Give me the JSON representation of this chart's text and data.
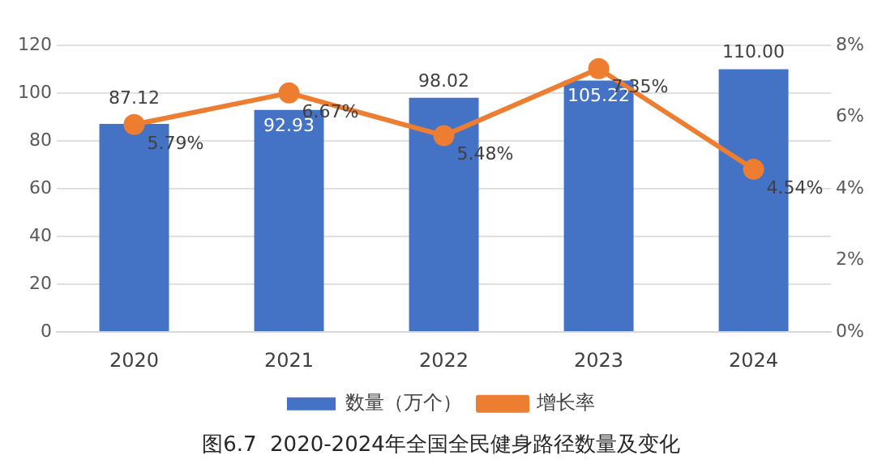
{
  "chart_data": {
    "type": "bar",
    "title": "图6.7  2020-2024年全国全民健身路径数量及变化",
    "categories": [
      "2020",
      "2021",
      "2022",
      "2023",
      "2024"
    ],
    "series": [
      {
        "name": "数量（万个）",
        "color": "#4472c4",
        "values": [
          87.12,
          92.93,
          98.02,
          105.22,
          110.0
        ],
        "value_labels": [
          "87.12",
          "92.93",
          "98.02",
          "105.22",
          "110.00"
        ]
      },
      {
        "name": "增长率",
        "type": "line",
        "axis": "y2",
        "color": "#ed7d31",
        "values": [
          5.79,
          6.67,
          5.48,
          7.35,
          4.54
        ],
        "value_labels": [
          "5.79%",
          "6.67%",
          "5.48%",
          "7.35%",
          "4.54%"
        ]
      }
    ],
    "ylim": [
      0,
      120
    ],
    "yticks": [
      0,
      20,
      40,
      60,
      80,
      100,
      120
    ],
    "y2lim": [
      0,
      8
    ],
    "y2ticks": [
      {
        "value": 0,
        "label": "0%"
      },
      {
        "value": 2,
        "label": "2%"
      },
      {
        "value": 4,
        "label": "4%"
      },
      {
        "value": 6,
        "label": "6%"
      },
      {
        "value": 8,
        "label": "8%"
      }
    ],
    "grid": "y",
    "legend": "bottom",
    "marker": "circle",
    "line_style": "solid"
  }
}
